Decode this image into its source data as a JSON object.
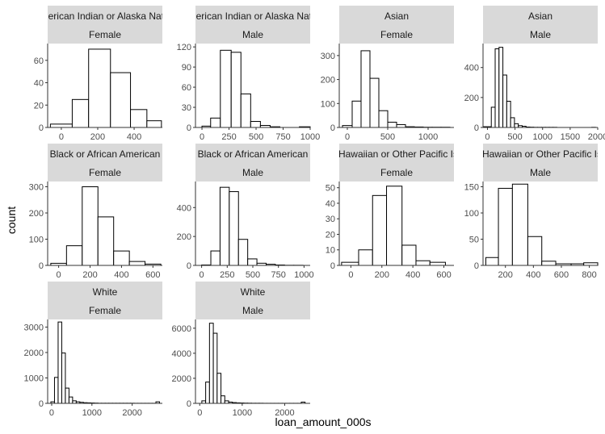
{
  "chart_data": {
    "type": "bar",
    "xlabel": "loan_amount_000s",
    "ylabel": "count",
    "grid": false,
    "colors": {
      "strip_fill": "#d9d9d9",
      "bar_fill": "#ffffff",
      "bar_stroke": "#000000",
      "axis": "#333333",
      "tick_label": "#4d4d4d"
    },
    "panels": [
      {
        "race": "American Indian or Alaska Native",
        "sex": "Female",
        "xlim": [
          -75,
          555
        ],
        "ylim": [
          0,
          75
        ],
        "xticks": [
          0,
          200,
          400
        ],
        "yticks": [
          0,
          20,
          40,
          60
        ],
        "bins": [
          [
            -60,
            60,
            3
          ],
          [
            60,
            150,
            25
          ],
          [
            150,
            270,
            70
          ],
          [
            270,
            380,
            49
          ],
          [
            380,
            470,
            16
          ],
          [
            470,
            550,
            6
          ]
        ]
      },
      {
        "race": "American Indian or Alaska Native",
        "sex": "Male",
        "xlim": [
          -60,
          1000
        ],
        "ylim": [
          0,
          125
        ],
        "xticks": [
          0,
          250,
          500,
          750,
          1000
        ],
        "yticks": [
          0,
          30,
          60,
          90,
          120
        ],
        "bins": [
          [
            0,
            80,
            2
          ],
          [
            80,
            170,
            14
          ],
          [
            170,
            270,
            115
          ],
          [
            270,
            360,
            112
          ],
          [
            360,
            450,
            50
          ],
          [
            450,
            540,
            9
          ],
          [
            540,
            630,
            3
          ],
          [
            630,
            720,
            1
          ],
          [
            720,
            810,
            0
          ],
          [
            810,
            900,
            0
          ],
          [
            900,
            1000,
            1
          ]
        ]
      },
      {
        "race": "Asian",
        "sex": "Female",
        "xlim": [
          -100,
          1320
        ],
        "ylim": [
          0,
          350
        ],
        "xticks": [
          0,
          500,
          1000
        ],
        "yticks": [
          0,
          100,
          200,
          300
        ],
        "bins": [
          [
            -60,
            60,
            8
          ],
          [
            60,
            170,
            110
          ],
          [
            170,
            280,
            320
          ],
          [
            280,
            390,
            205
          ],
          [
            390,
            500,
            70
          ],
          [
            500,
            610,
            22
          ],
          [
            610,
            720,
            12
          ],
          [
            720,
            830,
            3
          ],
          [
            830,
            940,
            2
          ],
          [
            940,
            1050,
            1
          ],
          [
            1050,
            1160,
            1
          ],
          [
            1160,
            1270,
            1
          ]
        ]
      },
      {
        "race": "Asian",
        "sex": "Male",
        "xlim": [
          -80,
          2000
        ],
        "ylim": [
          0,
          560
        ],
        "xticks": [
          0,
          500,
          1000,
          1500,
          2000
        ],
        "yticks": [
          0,
          200,
          400
        ],
        "bins": [
          [
            -70,
            70,
            5
          ],
          [
            70,
            140,
            135
          ],
          [
            140,
            210,
            525
          ],
          [
            210,
            280,
            535
          ],
          [
            280,
            350,
            350
          ],
          [
            350,
            420,
            175
          ],
          [
            420,
            490,
            65
          ],
          [
            490,
            560,
            25
          ],
          [
            560,
            630,
            12
          ],
          [
            630,
            700,
            8
          ],
          [
            700,
            770,
            3
          ],
          [
            770,
            840,
            2
          ],
          [
            840,
            910,
            1
          ],
          [
            910,
            980,
            1
          ],
          [
            980,
            1050,
            1
          ],
          [
            1050,
            1120,
            1
          ],
          [
            1120,
            1190,
            1
          ],
          [
            1190,
            1260,
            1
          ],
          [
            1260,
            1330,
            0
          ],
          [
            1330,
            1400,
            0
          ],
          [
            1400,
            1470,
            0
          ],
          [
            1470,
            1540,
            0
          ],
          [
            1540,
            1610,
            0
          ],
          [
            1610,
            1680,
            0
          ],
          [
            1680,
            1750,
            0
          ],
          [
            1750,
            1820,
            0
          ],
          [
            1820,
            1890,
            0
          ],
          [
            1890,
            1960,
            1
          ]
        ]
      },
      {
        "race": "Black or African American",
        "sex": "Female",
        "xlim": [
          -70,
          660
        ],
        "ylim": [
          0,
          320
        ],
        "xticks": [
          0,
          200,
          400,
          600
        ],
        "yticks": [
          0,
          100,
          200,
          300
        ],
        "bins": [
          [
            -50,
            50,
            8
          ],
          [
            50,
            150,
            75
          ],
          [
            150,
            250,
            300
          ],
          [
            250,
            350,
            185
          ],
          [
            350,
            450,
            55
          ],
          [
            450,
            550,
            15
          ],
          [
            550,
            650,
            5
          ]
        ]
      },
      {
        "race": "Black or African American",
        "sex": "Male",
        "xlim": [
          -60,
          1060
        ],
        "ylim": [
          0,
          580
        ],
        "xticks": [
          0,
          250,
          500,
          750,
          1000
        ],
        "yticks": [
          0,
          200,
          400
        ],
        "bins": [
          [
            0,
            90,
            3
          ],
          [
            90,
            180,
            100
          ],
          [
            180,
            270,
            540
          ],
          [
            270,
            360,
            510
          ],
          [
            360,
            450,
            180
          ],
          [
            450,
            540,
            45
          ],
          [
            540,
            630,
            15
          ],
          [
            630,
            720,
            8
          ],
          [
            720,
            810,
            3
          ],
          [
            810,
            900,
            1
          ],
          [
            900,
            990,
            1
          ]
        ]
      },
      {
        "race": "Native Hawaiian or Other Pacific Islander",
        "sex": "Female",
        "xlim": [
          -75,
          665
        ],
        "ylim": [
          0,
          54
        ],
        "xticks": [
          0,
          200,
          400,
          600
        ],
        "yticks": [
          0,
          10,
          20,
          30,
          40,
          50
        ],
        "bins": [
          [
            -60,
            50,
            2
          ],
          [
            50,
            140,
            10
          ],
          [
            140,
            230,
            45
          ],
          [
            230,
            330,
            51
          ],
          [
            330,
            420,
            13
          ],
          [
            420,
            510,
            3
          ],
          [
            510,
            610,
            2
          ]
        ]
      },
      {
        "race": "Native Hawaiian or Other Pacific Islander",
        "sex": "Male",
        "xlim": [
          40,
          860
        ],
        "ylim": [
          0,
          160
        ],
        "xticks": [
          200,
          400,
          600,
          800
        ],
        "yticks": [
          0,
          50,
          100,
          150
        ],
        "bins": [
          [
            60,
            150,
            15
          ],
          [
            150,
            250,
            147
          ],
          [
            250,
            360,
            155
          ],
          [
            360,
            460,
            55
          ],
          [
            460,
            560,
            8
          ],
          [
            560,
            670,
            3
          ],
          [
            670,
            760,
            3
          ],
          [
            760,
            860,
            5
          ]
        ]
      },
      {
        "race": "White",
        "sex": "Female",
        "xlim": [
          -100,
          2750
        ],
        "ylim": [
          0,
          3300
        ],
        "xticks": [
          0,
          1000,
          2000
        ],
        "yticks": [
          0,
          1000,
          2000,
          3000
        ],
        "bins": [
          [
            -20,
            70,
            60
          ],
          [
            70,
            160,
            1020
          ],
          [
            160,
            250,
            3200
          ],
          [
            250,
            340,
            1980
          ],
          [
            340,
            430,
            600
          ],
          [
            430,
            520,
            250
          ],
          [
            520,
            610,
            100
          ],
          [
            610,
            700,
            60
          ],
          [
            700,
            790,
            40
          ],
          [
            790,
            880,
            25
          ],
          [
            880,
            970,
            20
          ],
          [
            970,
            1060,
            15
          ],
          [
            1060,
            1150,
            10
          ],
          [
            1150,
            1240,
            5
          ],
          [
            1240,
            1330,
            5
          ],
          [
            1330,
            1420,
            5
          ],
          [
            1420,
            1510,
            5
          ],
          [
            1510,
            1600,
            5
          ],
          [
            1600,
            1690,
            5
          ],
          [
            1690,
            1780,
            5
          ],
          [
            1780,
            1870,
            5
          ],
          [
            1870,
            1960,
            5
          ],
          [
            1960,
            2050,
            5
          ],
          [
            2050,
            2140,
            3
          ],
          [
            2140,
            2230,
            3
          ],
          [
            2230,
            2320,
            3
          ],
          [
            2320,
            2410,
            3
          ],
          [
            2410,
            2500,
            3
          ],
          [
            2500,
            2590,
            3
          ],
          [
            2590,
            2680,
            60
          ]
        ]
      },
      {
        "race": "White",
        "sex": "Male",
        "xlim": [
          -100,
          2600
        ],
        "ylim": [
          0,
          6700
        ],
        "xticks": [
          0,
          1000,
          2000
        ],
        "yticks": [
          0,
          2000,
          4000,
          6000
        ],
        "bins": [
          [
            50,
            140,
            200
          ],
          [
            140,
            230,
            1700
          ],
          [
            230,
            320,
            6400
          ],
          [
            320,
            410,
            5600
          ],
          [
            410,
            500,
            2400
          ],
          [
            500,
            590,
            600
          ],
          [
            590,
            680,
            200
          ],
          [
            680,
            770,
            100
          ],
          [
            770,
            860,
            60
          ],
          [
            860,
            950,
            40
          ],
          [
            950,
            1040,
            30
          ],
          [
            1040,
            1130,
            20
          ],
          [
            1130,
            1220,
            15
          ],
          [
            1220,
            1310,
            10
          ],
          [
            1310,
            1400,
            10
          ],
          [
            1400,
            1490,
            10
          ],
          [
            1490,
            1580,
            5
          ],
          [
            1580,
            1670,
            5
          ],
          [
            1670,
            1760,
            5
          ],
          [
            1760,
            1850,
            5
          ],
          [
            1850,
            1940,
            5
          ],
          [
            1940,
            2030,
            5
          ],
          [
            2030,
            2120,
            5
          ],
          [
            2120,
            2210,
            5
          ],
          [
            2210,
            2300,
            5
          ],
          [
            2300,
            2390,
            5
          ],
          [
            2390,
            2480,
            100
          ]
        ]
      }
    ]
  }
}
